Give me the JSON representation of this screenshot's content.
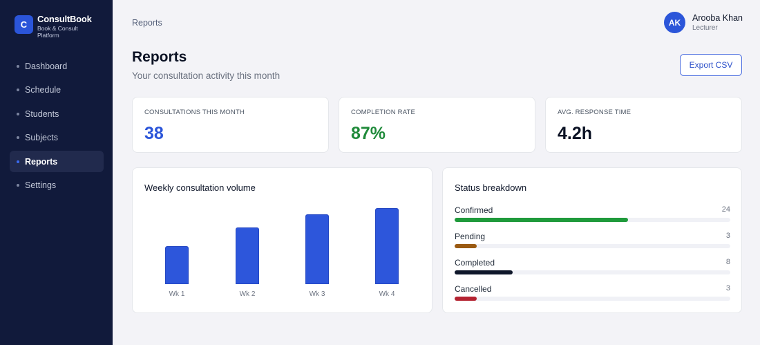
{
  "brand": {
    "logo_letter": "C",
    "name": "ConsultBook",
    "tagline": "Book & Consult Platform"
  },
  "sidebar": {
    "items": [
      {
        "label": "Dashboard",
        "active": false
      },
      {
        "label": "Schedule",
        "active": false
      },
      {
        "label": "Students",
        "active": false
      },
      {
        "label": "Subjects",
        "active": false
      },
      {
        "label": "Reports",
        "active": true
      },
      {
        "label": "Settings",
        "active": false
      }
    ]
  },
  "header": {
    "breadcrumb": "Reports"
  },
  "user": {
    "initials": "AK",
    "name": "Arooba Khan",
    "role": "Lecturer"
  },
  "page": {
    "title": "Reports",
    "subtitle": "Your consultation activity this month",
    "export_label": "Export CSV"
  },
  "kpis": [
    {
      "label": "CONSULTATIONS THIS MONTH",
      "value": "38",
      "color": "#2b55d9"
    },
    {
      "label": "COMPLETION RATE",
      "value": "87%",
      "color": "#1f8a3a"
    },
    {
      "label": "AVG. RESPONSE TIME",
      "value": "4.2h",
      "color": "#0b1224"
    }
  ],
  "weekly": {
    "title": "Weekly consultation volume"
  },
  "chart_data": {
    "type": "bar",
    "categories": [
      "Wk 1",
      "Wk 2",
      "Wk 3",
      "Wk 4"
    ],
    "values": [
      6,
      9,
      11,
      12
    ],
    "ylim": [
      0,
      12
    ],
    "grid": false,
    "color": "#2d56db"
  },
  "status": {
    "title": "Status breakdown",
    "items": [
      {
        "label": "Confirmed",
        "count": "24",
        "fraction": 0.63,
        "color": "#1f9a3b"
      },
      {
        "label": "Pending",
        "count": "3",
        "fraction": 0.08,
        "color": "#9a5a12"
      },
      {
        "label": "Completed",
        "count": "8",
        "fraction": 0.21,
        "color": "#0f172a"
      },
      {
        "label": "Cancelled",
        "count": "3",
        "fraction": 0.08,
        "color": "#b42331"
      }
    ]
  }
}
